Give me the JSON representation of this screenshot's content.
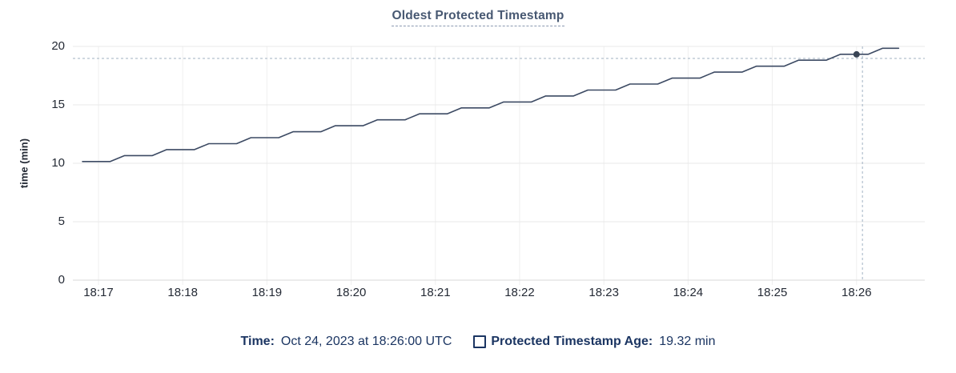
{
  "title": "Oldest Protected Timestamp",
  "y_axis": {
    "label": "time (min)",
    "ticks": [
      0,
      5,
      10,
      15,
      20
    ]
  },
  "x_axis": {
    "ticks": [
      {
        "minute": 17,
        "label": "18:17"
      },
      {
        "minute": 18,
        "label": "18:18"
      },
      {
        "minute": 19,
        "label": "18:19"
      },
      {
        "minute": 20,
        "label": "18:20"
      },
      {
        "minute": 21,
        "label": "18:21"
      },
      {
        "minute": 22,
        "label": "18:22"
      },
      {
        "minute": 23,
        "label": "18:23"
      },
      {
        "minute": 24,
        "label": "18:24"
      },
      {
        "minute": 25,
        "label": "18:25"
      },
      {
        "minute": 26,
        "label": "18:26"
      }
    ]
  },
  "tooltip": {
    "time_label": "Time:",
    "time_value": "Oct 24, 2023 at 18:26:00 UTC",
    "series_label": "Protected Timestamp Age:",
    "series_value": "19.32 min"
  },
  "colors": {
    "line": "#3c4a63",
    "dot": "#394455",
    "crosshair": "#a2b2c2",
    "grid_h": "#e8e8e8",
    "grid_v": "#efefef",
    "axis": "#d9d9d9",
    "title": "#475872",
    "tick_text": "#242a35",
    "legend_text": "#1b3562"
  },
  "chart_data": {
    "type": "line",
    "title": "Oldest Protected Timestamp",
    "xlabel": "",
    "ylabel": "time (min)",
    "x_unit": "minutes after 18:00 UTC",
    "xlim": [
      16.696,
      26.81
    ],
    "ylim": [
      0,
      20
    ],
    "grid": true,
    "legend_position": "bottom",
    "series": [
      {
        "name": "Protected Timestamp Age",
        "unit": "min",
        "points": [
          [
            16.81,
            10.15
          ],
          [
            17.14,
            10.15
          ],
          [
            17.31,
            10.66
          ],
          [
            17.64,
            10.66
          ],
          [
            17.81,
            11.17
          ],
          [
            18.14,
            11.17
          ],
          [
            18.31,
            11.68
          ],
          [
            18.64,
            11.68
          ],
          [
            18.81,
            12.19
          ],
          [
            19.14,
            12.19
          ],
          [
            19.31,
            12.7
          ],
          [
            19.64,
            12.7
          ],
          [
            19.81,
            13.21
          ],
          [
            20.14,
            13.21
          ],
          [
            20.31,
            13.72
          ],
          [
            20.64,
            13.72
          ],
          [
            20.81,
            14.23
          ],
          [
            21.14,
            14.23
          ],
          [
            21.31,
            14.74
          ],
          [
            21.64,
            14.74
          ],
          [
            21.81,
            15.25
          ],
          [
            22.14,
            15.25
          ],
          [
            22.31,
            15.76
          ],
          [
            22.64,
            15.76
          ],
          [
            22.81,
            16.27
          ],
          [
            23.14,
            16.27
          ],
          [
            23.31,
            16.78
          ],
          [
            23.64,
            16.78
          ],
          [
            23.81,
            17.29
          ],
          [
            24.14,
            17.29
          ],
          [
            24.31,
            17.8
          ],
          [
            24.64,
            17.8
          ],
          [
            24.81,
            18.31
          ],
          [
            25.14,
            18.31
          ],
          [
            25.31,
            18.82
          ],
          [
            25.64,
            18.82
          ],
          [
            25.81,
            19.33
          ],
          [
            26.14,
            19.33
          ],
          [
            26.31,
            19.84
          ],
          [
            26.5,
            19.84
          ]
        ]
      }
    ],
    "highlight": {
      "x_minute": 26.0,
      "time_label": "18:26:00",
      "value": 19.32
    },
    "crosshair": {
      "x_minute": 26.07,
      "value": 18.97
    }
  }
}
